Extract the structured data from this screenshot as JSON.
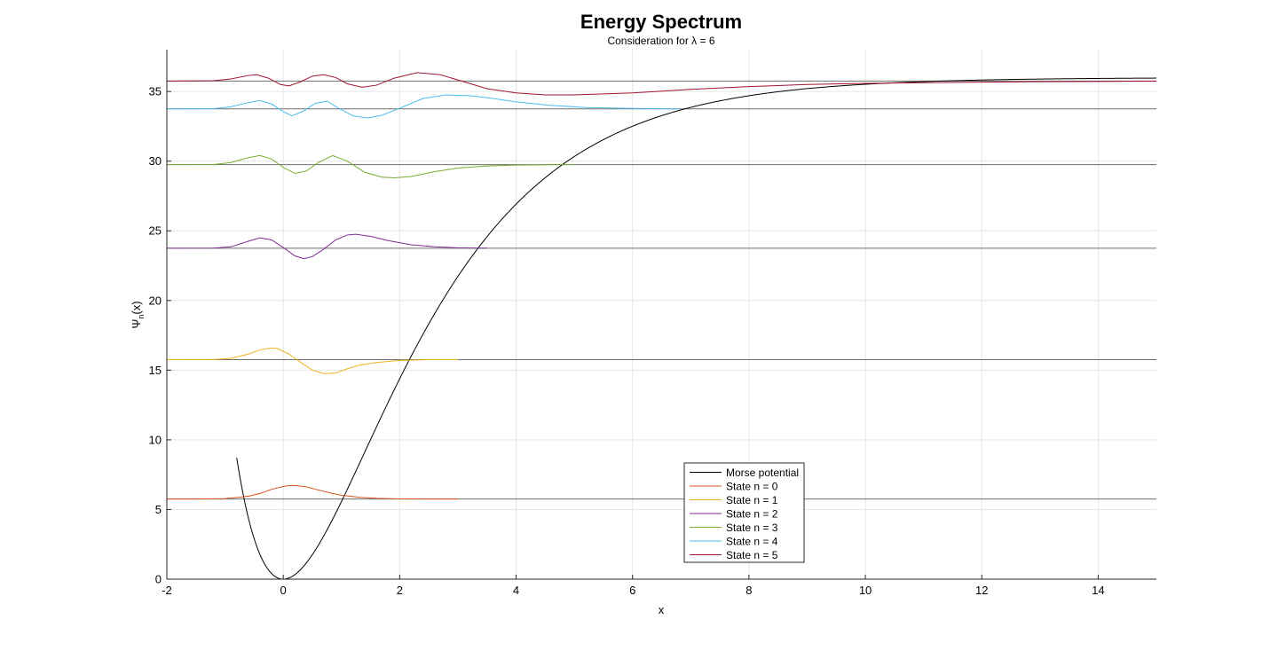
{
  "chart_data": {
    "type": "line",
    "title": "Energy Spectrum",
    "subtitle": "Consideration  for  λ  =  6",
    "xlabel": "x",
    "ylabel": "Ψn(x)",
    "xlim": [
      -2,
      15
    ],
    "ylim": [
      0,
      38
    ],
    "xticks": [
      -2,
      0,
      2,
      4,
      6,
      8,
      10,
      12,
      14
    ],
    "yticks": [
      0,
      5,
      10,
      15,
      20,
      25,
      30,
      35
    ],
    "grid": true,
    "legend_location": "bottom-center",
    "energy_levels": [
      5.75,
      15.75,
      23.75,
      29.75,
      33.75,
      35.75
    ],
    "potential": {
      "name": "Morse potential",
      "color": "#000000",
      "depth": 36,
      "a": 0.5
    },
    "series": [
      {
        "name": "State n = 0",
        "color": "#d95319",
        "energy": 5.75,
        "x": [
          -2,
          -1.5,
          -1,
          -0.6,
          -0.4,
          -0.2,
          0,
          0.1,
          0.2,
          0.4,
          0.6,
          0.8,
          1.0,
          1.3,
          1.6,
          2.0,
          2.5,
          3.0
        ],
        "y": [
          5.75,
          5.75,
          5.78,
          5.95,
          6.15,
          6.45,
          6.65,
          6.72,
          6.72,
          6.62,
          6.4,
          6.2,
          6.02,
          5.88,
          5.8,
          5.76,
          5.75,
          5.75
        ]
      },
      {
        "name": "State n = 1",
        "color": "#edb120",
        "energy": 15.75,
        "x": [
          -2,
          -1.2,
          -0.9,
          -0.6,
          -0.4,
          -0.2,
          -0.1,
          0.1,
          0.3,
          0.5,
          0.7,
          0.9,
          1.1,
          1.3,
          1.6,
          2.0,
          2.5,
          3.0
        ],
        "y": [
          15.75,
          15.76,
          15.85,
          16.15,
          16.45,
          16.6,
          16.55,
          16.15,
          15.55,
          15.0,
          14.75,
          14.8,
          15.1,
          15.35,
          15.55,
          15.7,
          15.75,
          15.75
        ]
      },
      {
        "name": "State n = 2",
        "color": "#7e2f8e",
        "energy": 23.75,
        "x": [
          -2,
          -1.2,
          -0.9,
          -0.6,
          -0.4,
          -0.2,
          0,
          0.2,
          0.35,
          0.5,
          0.7,
          0.9,
          1.1,
          1.25,
          1.5,
          1.8,
          2.2,
          2.6,
          3.0,
          3.5
        ],
        "y": [
          23.75,
          23.76,
          23.85,
          24.25,
          24.5,
          24.35,
          23.8,
          23.2,
          23.0,
          23.15,
          23.7,
          24.35,
          24.7,
          24.75,
          24.6,
          24.3,
          24.0,
          23.85,
          23.78,
          23.75
        ]
      },
      {
        "name": "State n = 3",
        "color": "#77ac30",
        "energy": 29.75,
        "x": [
          -2,
          -1.2,
          -0.9,
          -0.6,
          -0.4,
          -0.2,
          0,
          0.2,
          0.4,
          0.6,
          0.85,
          1.1,
          1.4,
          1.7,
          1.9,
          2.2,
          2.6,
          3.0,
          3.5,
          4.0,
          4.5,
          5.0
        ],
        "y": [
          29.75,
          29.76,
          29.9,
          30.25,
          30.4,
          30.15,
          29.55,
          29.12,
          29.3,
          29.9,
          30.4,
          30.0,
          29.2,
          28.85,
          28.8,
          28.9,
          29.25,
          29.5,
          29.65,
          29.72,
          29.74,
          29.75
        ]
      },
      {
        "name": "State n = 4",
        "color": "#4dbeee",
        "energy": 33.75,
        "x": [
          -2,
          -1.2,
          -0.9,
          -0.6,
          -0.4,
          -0.2,
          0,
          0.15,
          0.35,
          0.55,
          0.75,
          0.95,
          1.2,
          1.45,
          1.7,
          2.0,
          2.4,
          2.8,
          3.2,
          3.6,
          4.0,
          4.6,
          5.2,
          6.0,
          6.8
        ],
        "y": [
          33.75,
          33.77,
          33.9,
          34.2,
          34.35,
          34.1,
          33.55,
          33.25,
          33.6,
          34.15,
          34.3,
          33.8,
          33.25,
          33.1,
          33.3,
          33.8,
          34.5,
          34.75,
          34.7,
          34.5,
          34.25,
          34.0,
          33.85,
          33.78,
          33.75
        ]
      },
      {
        "name": "State n = 5",
        "color": "#a2142f",
        "energy": 35.75,
        "x": [
          -2,
          -1.2,
          -0.9,
          -0.6,
          -0.45,
          -0.25,
          -0.05,
          0.1,
          0.3,
          0.5,
          0.7,
          0.9,
          1.1,
          1.35,
          1.6,
          1.9,
          2.3,
          2.7,
          3.1,
          3.5,
          4.0,
          4.5,
          5.0,
          6.0,
          7.0,
          8.0,
          9.0,
          10.0,
          11.0,
          12.0,
          13.0,
          14.0,
          15.0
        ],
        "y": [
          35.75,
          35.77,
          35.9,
          36.15,
          36.2,
          35.95,
          35.5,
          35.4,
          35.7,
          36.1,
          36.2,
          36.0,
          35.55,
          35.3,
          35.45,
          35.95,
          36.35,
          36.2,
          35.7,
          35.2,
          34.9,
          34.75,
          34.75,
          34.9,
          35.15,
          35.35,
          35.5,
          35.58,
          35.63,
          35.67,
          35.7,
          35.72,
          35.74
        ]
      }
    ]
  }
}
